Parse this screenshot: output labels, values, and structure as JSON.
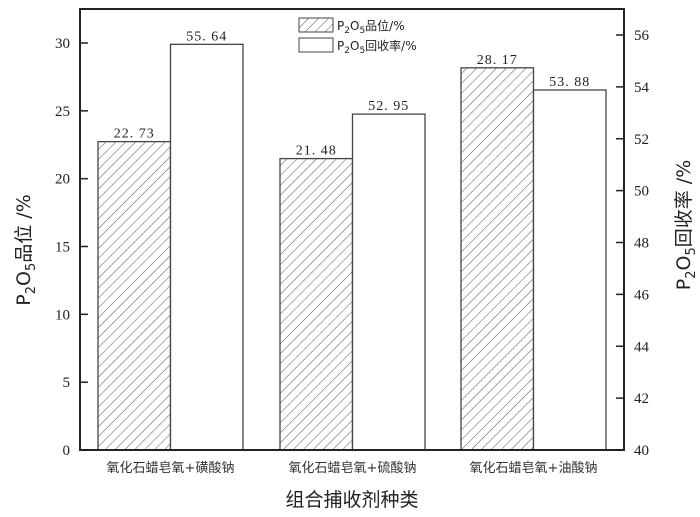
{
  "chart_data": {
    "type": "bar",
    "title": "",
    "xlabel": "组合捕收剂种类",
    "categories": [
      "氧化石蜡皂氧+磺酸钠",
      "氧化石蜡皂氧+硫酸钠",
      "氧化石蜡皂氧+油酸钠"
    ],
    "series": [
      {
        "name": "P2O5品位/%",
        "axis": "left",
        "pattern": "hatched",
        "values": [
          22.73,
          21.48,
          28.17
        ],
        "labels": [
          "22.73",
          "21.48",
          "28.17"
        ]
      },
      {
        "name": "P2O5回收率/%",
        "axis": "right",
        "pattern": "white",
        "values": [
          55.64,
          52.95,
          53.88
        ],
        "labels": [
          "55.64",
          "52.95",
          "53.88"
        ]
      }
    ],
    "ylabel": "P2O5品位 /%",
    "ylim": [
      0,
      32
    ],
    "yticks": [
      0,
      5,
      10,
      15,
      20,
      25,
      30
    ],
    "y2label": "P2O5回收率 /%",
    "y2lim": [
      40,
      56.7
    ],
    "y2ticks": [
      40,
      42,
      44,
      46,
      48,
      50,
      52,
      54,
      56
    ],
    "grid": false,
    "legend_position": "top-center"
  },
  "labels": {
    "xlabel": "组合捕收剂种类",
    "ylabel_main": "品位 /%",
    "y2label_main": "回收率 /%",
    "legend": [
      {
        "main": "品位/%"
      },
      {
        "main": "回收率/%"
      }
    ],
    "p2o5": {
      "p": "P",
      "sub2": "2",
      "o": "O",
      "sub5": "5"
    }
  },
  "colors": {
    "frame": "#222222",
    "bar_edge": "#444444",
    "hatch": "#555555",
    "fill": "#ffffff"
  }
}
